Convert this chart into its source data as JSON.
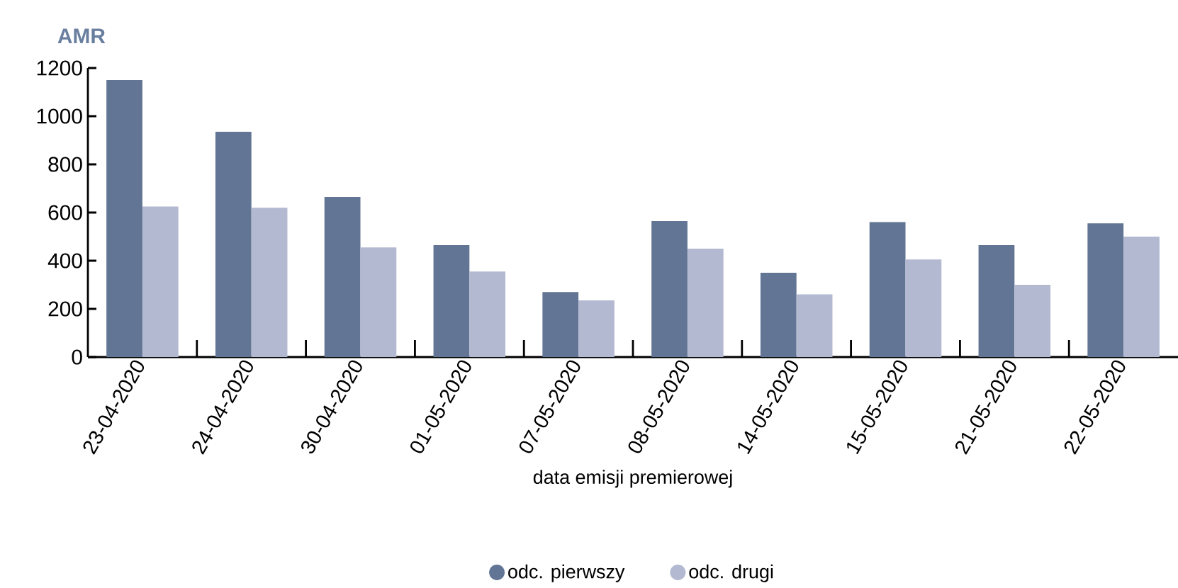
{
  "chart_data": {
    "type": "bar",
    "ylabel": "AMR",
    "xlabel": "data emisji premierowej",
    "categories": [
      "23-04-2020",
      "24-04-2020",
      "30-04-2020",
      "01-05-2020",
      "07-05-2020",
      "08-05-2020",
      "14-05-2020",
      "15-05-2020",
      "21-05-2020",
      "22-05-2020"
    ],
    "series": [
      {
        "name": "odc. pierwszy",
        "color": "#627594",
        "values": [
          1150,
          935,
          665,
          465,
          270,
          565,
          350,
          560,
          465,
          555
        ]
      },
      {
        "name": "odc. drugi",
        "color": "#b3b9d1",
        "values": [
          625,
          620,
          455,
          355,
          235,
          450,
          260,
          405,
          300,
          500
        ]
      }
    ],
    "ylim": [
      0,
      1200
    ],
    "yticks": [
      0,
      200,
      400,
      600,
      800,
      1000,
      1200
    ],
    "grid": false,
    "legend": "bottom"
  }
}
